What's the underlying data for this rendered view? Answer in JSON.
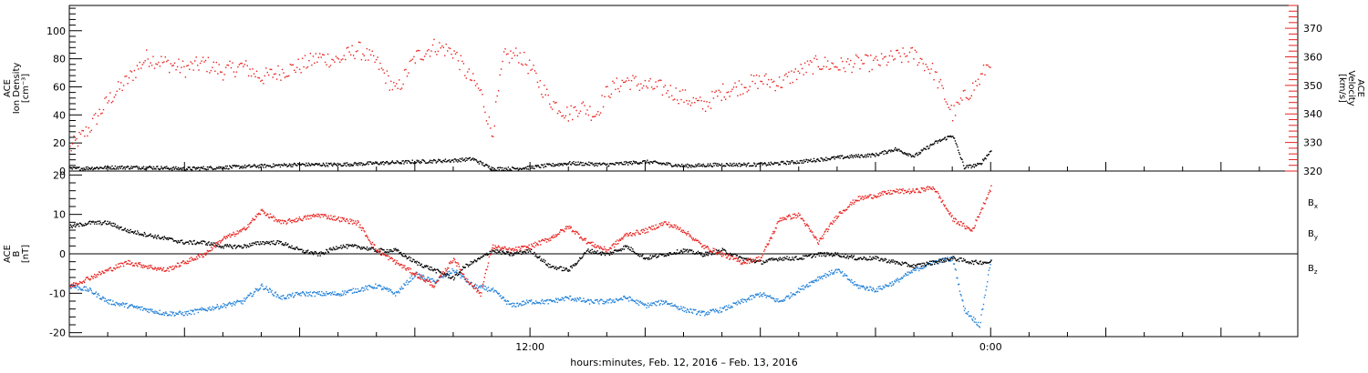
{
  "x_axis": {
    "title": "hours:minutes, Feb. 12, 2016 – Feb. 13, 2016"
  },
  "chart_data": [
    {
      "type": "scatter",
      "panel": "top",
      "ylabel_left": [
        "ACE",
        "Ion Density",
        "[cm⁻³]"
      ],
      "ylabel_right": [
        "ACE",
        "Velocity",
        "[km/s]"
      ],
      "left_ylim": [
        0,
        118
      ],
      "left_yticks": [
        0,
        20,
        40,
        60,
        80,
        100
      ],
      "right_ylim": [
        320,
        378
      ],
      "right_yticks": [
        320,
        330,
        340,
        350,
        360,
        370
      ],
      "xlim_hours": [
        0,
        32
      ],
      "x_ticks": [
        {
          "hour": 12,
          "label": "12:00"
        },
        {
          "hour": 24,
          "label": "0:00"
        }
      ],
      "series": [
        {
          "name": "Ion Density",
          "axis": "left",
          "color": "#000000",
          "x": [
            0,
            1,
            2,
            3,
            4,
            5,
            6,
            7,
            8,
            9,
            10,
            10.5,
            11,
            11.5,
            12,
            13,
            14,
            15,
            16,
            17,
            18,
            19,
            20,
            21,
            21.5,
            22,
            22.5,
            23,
            23.3,
            23.7,
            24
          ],
          "y": [
            2,
            3,
            3,
            2,
            3,
            4,
            5,
            5,
            6,
            7,
            8,
            9,
            2,
            2,
            3,
            6,
            5,
            7,
            4,
            5,
            5,
            7,
            10,
            12,
            16,
            11,
            20,
            26,
            3,
            5,
            15
          ]
        },
        {
          "name": "Velocity",
          "axis": "right",
          "color": "#e8201c",
          "x": [
            0,
            0.5,
            1,
            1.5,
            2,
            2.5,
            3,
            3.5,
            4,
            4.5,
            5,
            5.5,
            6,
            6.5,
            7,
            7.5,
            8,
            8.5,
            9,
            9.5,
            10,
            10.3,
            10.7,
            11,
            11.3,
            11.7,
            12,
            12.5,
            13,
            13.3,
            13.7,
            14,
            14.5,
            15,
            15.5,
            16,
            16.5,
            17,
            17.5,
            18,
            18.5,
            19,
            19.5,
            20,
            20.5,
            21,
            21.5,
            22,
            22.5,
            23,
            23.3,
            23.7,
            24
          ],
          "y": [
            328,
            335,
            345,
            352,
            360,
            358,
            356,
            358,
            355,
            357,
            353,
            355,
            357,
            360,
            359,
            363,
            358,
            348,
            360,
            364,
            362,
            355,
            348,
            333,
            360,
            361,
            356,
            345,
            340,
            343,
            340,
            348,
            352,
            350,
            349,
            346,
            343,
            348,
            350,
            352,
            351,
            355,
            358,
            357,
            358,
            358,
            360,
            361,
            355,
            340,
            346,
            352,
            360
          ]
        }
      ]
    },
    {
      "type": "scatter",
      "panel": "bottom",
      "ylabel_left": [
        "ACE",
        "B",
        "[nT]"
      ],
      "ylim": [
        -21,
        21
      ],
      "yticks": [
        -20,
        -10,
        0,
        10,
        20
      ],
      "xlim_hours": [
        0,
        32
      ],
      "x_ticks": [
        {
          "hour": 12,
          "label": "12:00"
        },
        {
          "hour": 24,
          "label": "0:00"
        }
      ],
      "zero_line": true,
      "legend_placement": "right",
      "series": [
        {
          "name": "Bx",
          "legend_main": "B",
          "legend_sub": "x",
          "color": "#000000",
          "x": [
            0,
            0.5,
            1,
            1.5,
            2,
            2.5,
            3,
            3.5,
            4,
            4.5,
            5,
            5.5,
            6,
            6.5,
            7,
            7.5,
            8,
            8.5,
            9,
            9.5,
            10,
            10.3,
            10.7,
            11,
            11.5,
            12,
            12.5,
            13,
            13.5,
            14,
            14.5,
            15,
            15.5,
            16,
            16.5,
            17,
            17.5,
            18,
            18.5,
            19,
            19.5,
            20,
            20.5,
            21,
            21.5,
            22,
            22.5,
            23,
            23.5,
            24
          ],
          "y": [
            7,
            8,
            8,
            6,
            5,
            4,
            3,
            3,
            2,
            2,
            3,
            3,
            1,
            0,
            2,
            2,
            1,
            1,
            -2,
            -4,
            -6,
            -3,
            -1,
            1,
            0,
            1,
            -3,
            -4,
            1,
            0,
            2,
            -1,
            0,
            1,
            0,
            1,
            -1,
            -2,
            -1,
            -1,
            0,
            0,
            -1,
            -1,
            -2,
            -3,
            -2,
            -1,
            -2,
            -2
          ]
        },
        {
          "name": "By",
          "legend_main": "B",
          "legend_sub": "y",
          "color": "#1e7fd8",
          "x": [
            0,
            0.5,
            1,
            1.5,
            2,
            2.5,
            3,
            3.5,
            4,
            4.5,
            5,
            5.5,
            6,
            6.5,
            7,
            7.5,
            8,
            8.5,
            9,
            9.5,
            10,
            10.5,
            11,
            11.5,
            12,
            12.5,
            13,
            13.5,
            14,
            14.5,
            15,
            15.5,
            16,
            16.5,
            17,
            17.5,
            18,
            18.5,
            19,
            19.5,
            20,
            20.5,
            21,
            21.5,
            22,
            22.5,
            23,
            23.3,
            23.7,
            24
          ],
          "y": [
            -8,
            -9,
            -12,
            -13,
            -14,
            -15,
            -15,
            -14,
            -13,
            -12,
            -8,
            -11,
            -10,
            -10,
            -10,
            -9,
            -8,
            -10,
            -5,
            -7,
            -4,
            -8,
            -9,
            -13,
            -12,
            -12,
            -11,
            -12,
            -12,
            -11,
            -13,
            -12,
            -14,
            -15,
            -14,
            -12,
            -10,
            -12,
            -9,
            -6,
            -4,
            -8,
            -9,
            -7,
            -4,
            -2,
            -1,
            -14,
            -18,
            -1
          ]
        },
        {
          "name": "Bz",
          "legend_main": "B",
          "legend_sub": "z",
          "color": "#e8201c",
          "x": [
            0,
            0.5,
            1,
            1.5,
            2,
            2.5,
            3,
            3.5,
            4,
            4.5,
            5,
            5.5,
            6,
            6.5,
            7,
            7.5,
            8,
            8.5,
            9,
            9.5,
            10,
            10.3,
            10.7,
            11,
            11.5,
            12,
            12.5,
            13,
            13.5,
            14,
            14.5,
            15,
            15.5,
            16,
            16.5,
            17,
            17.5,
            18,
            18.5,
            19,
            19.5,
            20,
            20.5,
            21,
            21.5,
            22,
            22.5,
            23,
            23.5,
            24
          ],
          "y": [
            -8,
            -6,
            -4,
            -2,
            -3,
            -4,
            -2,
            0,
            4,
            6,
            11,
            8,
            9,
            10,
            9,
            8,
            1,
            -2,
            -5,
            -8,
            -1,
            -6,
            -10,
            2,
            1,
            2,
            4,
            7,
            3,
            1,
            5,
            6,
            8,
            6,
            2,
            0,
            -2,
            -1,
            9,
            10,
            3,
            10,
            14,
            15,
            16,
            16,
            17,
            9,
            6,
            17
          ]
        }
      ]
    }
  ],
  "colors": {
    "density": "#000000",
    "velocity": "#e8201c",
    "bx": "#000000",
    "by": "#1e7fd8",
    "bz": "#e8201c"
  }
}
